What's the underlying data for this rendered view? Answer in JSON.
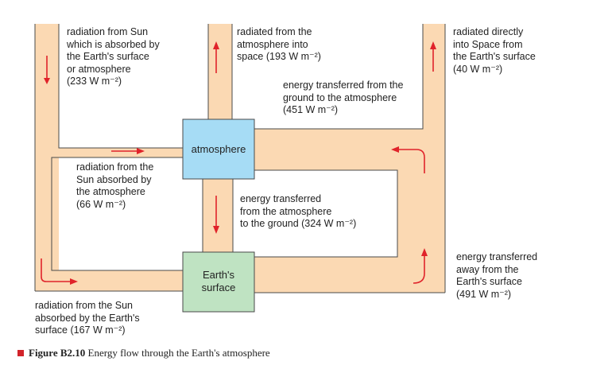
{
  "boxes": {
    "atmosphere": "atmosphere",
    "surface": [
      "Earth's",
      "surface"
    ]
  },
  "labels": {
    "sun_absorbed_total": [
      "radiation from Sun",
      "which is absorbed by",
      "the Earth's surface",
      "or atmosphere",
      "(233 W m⁻²)"
    ],
    "radiated_from_atmosphere": [
      "radiated from the",
      "atmosphere into",
      "space (193 W m⁻²)"
    ],
    "radiated_from_surface": [
      "radiated directly",
      "into Space from",
      "the Earth's surface",
      "(40 W m⁻²)"
    ],
    "ground_to_atmosphere": [
      "energy transferred from the",
      "ground to the atmosphere",
      "(451 W m⁻²)"
    ],
    "sun_absorbed_atmosphere": [
      "radiation from the",
      "Sun absorbed by",
      "the atmosphere",
      "(66 W m⁻²)"
    ],
    "atmosphere_to_ground": [
      "energy transferred",
      "from the atmosphere",
      "to the ground (324 W m⁻²)"
    ],
    "away_from_surface": [
      "energy transferred",
      "away from the",
      "Earth's surface",
      "(491 W m⁻²)"
    ],
    "sun_absorbed_surface": [
      "radiation from the Sun",
      "absorbed by the Earth's",
      "surface (167 W m⁻²)"
    ]
  },
  "caption": {
    "figure_number": "Figure B2.10",
    "text": " Energy flow through the Earth's atmosphere"
  },
  "colors": {
    "band_fill": "#fbd9b3",
    "band_outline": "#4a4a4a",
    "atmosphere_box": "#a6dcf5",
    "surface_box": "#bfe3c2",
    "arrow": "#e0232a",
    "caption_marker": "#d2232a"
  }
}
